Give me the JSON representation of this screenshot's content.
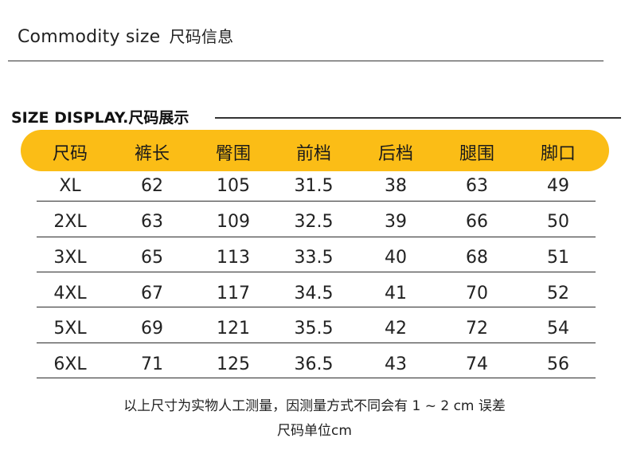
{
  "top_title_en": "Commodity size",
  "top_title_cn": "尺码信息",
  "section_title": "SIZE DISPLAY.尺码展示",
  "headers": [
    "尺码",
    "裤长",
    "臀围",
    "前档",
    "后档",
    "腿围",
    "脚口"
  ],
  "rows": [
    [
      "XL",
      "62",
      "105",
      "31.5",
      "38",
      "63",
      "49"
    ],
    [
      "2XL",
      "63",
      "109",
      "32.5",
      "39",
      "66",
      "50"
    ],
    [
      "3XL",
      "65",
      "113",
      "33.5",
      "40",
      "68",
      "51"
    ],
    [
      "4XL",
      "67",
      "117",
      "34.5",
      "41",
      "70",
      "52"
    ],
    [
      "5XL",
      "69",
      "121",
      "35.5",
      "42",
      "72",
      "54"
    ],
    [
      "6XL",
      "71",
      "125",
      "36.5",
      "43",
      "74",
      "56"
    ]
  ],
  "note_line1": "以上尺寸为实物人工测量，因测量方式不同会有 1 ~ 2 cm 误差",
  "note_line2": "尺码单位cm",
  "colors": {
    "header_bar": "#fbbd16",
    "text": "#1c1c1c"
  }
}
